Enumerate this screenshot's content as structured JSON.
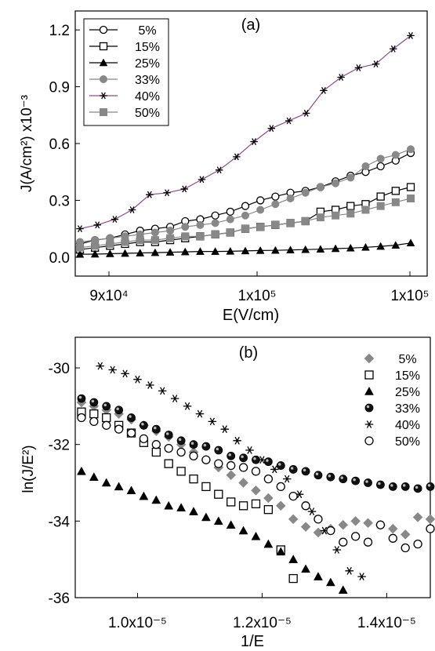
{
  "chart_data": [
    {
      "type": "line",
      "panel_label": "(a)",
      "xlabel": "E(V/cm)",
      "ylabel": "J(A/cm²) x10⁻³",
      "x_tick_labels": [
        "9x10⁴",
        "1x10⁵",
        "1x10⁵"
      ],
      "y_ticks": [
        0.0,
        0.3,
        0.6,
        0.9,
        1.2
      ],
      "y_tick_labels": [
        "0.0",
        "0.3",
        "0.6",
        "0.9",
        "1.2"
      ],
      "ylim": [
        -0.1,
        1.3
      ],
      "legend_position": "top-left",
      "x_point_index": [
        1,
        2,
        3,
        4,
        5,
        6,
        7,
        8,
        9,
        10,
        11,
        12,
        13,
        14,
        15,
        16,
        17,
        18,
        19,
        20,
        21,
        22,
        23
      ],
      "series": [
        {
          "name": "5%",
          "marker": "circle-open",
          "color": "#000000",
          "values": [
            0.07,
            0.09,
            0.1,
            0.12,
            0.14,
            0.15,
            0.16,
            0.19,
            0.2,
            0.22,
            0.24,
            0.27,
            0.3,
            0.32,
            0.34,
            0.35,
            0.37,
            0.4,
            0.43,
            0.45,
            0.48,
            0.51,
            0.55
          ]
        },
        {
          "name": "15%",
          "marker": "square-open",
          "color": "#000000",
          "values": [
            0.04,
            0.05,
            0.06,
            0.07,
            0.08,
            0.08,
            0.09,
            0.1,
            0.11,
            0.12,
            0.13,
            0.15,
            0.16,
            0.17,
            0.18,
            0.19,
            0.24,
            0.25,
            0.27,
            0.28,
            0.32,
            0.35,
            0.37
          ]
        },
        {
          "name": "25%",
          "marker": "triangle-filled",
          "color": "#000000",
          "values": [
            0.015,
            0.016,
            0.018,
            0.02,
            0.022,
            0.024,
            0.026,
            0.028,
            0.03,
            0.03,
            0.031,
            0.033,
            0.035,
            0.036,
            0.038,
            0.04,
            0.042,
            0.045,
            0.048,
            0.052,
            0.057,
            0.063,
            0.075
          ]
        },
        {
          "name": "33%",
          "marker": "circle-filled",
          "color": "#888888",
          "values": [
            0.08,
            0.09,
            0.1,
            0.11,
            0.12,
            0.13,
            0.14,
            0.16,
            0.17,
            0.18,
            0.2,
            0.22,
            0.25,
            0.28,
            0.31,
            0.34,
            0.37,
            0.39,
            0.42,
            0.48,
            0.52,
            0.54,
            0.57
          ]
        },
        {
          "name": "40%",
          "marker": "asterisk",
          "color": "#8a4a8a",
          "values": [
            0.15,
            0.17,
            0.2,
            0.25,
            0.33,
            0.34,
            0.36,
            0.41,
            0.46,
            0.53,
            0.61,
            0.68,
            0.72,
            0.76,
            0.88,
            0.95,
            1.0,
            1.02,
            1.1,
            1.17
          ]
        },
        {
          "name": "50%",
          "marker": "square-filled",
          "color": "#888888",
          "values": [
            0.05,
            0.06,
            0.07,
            0.08,
            0.09,
            0.09,
            0.1,
            0.11,
            0.11,
            0.12,
            0.13,
            0.15,
            0.16,
            0.17,
            0.18,
            0.19,
            0.21,
            0.22,
            0.23,
            0.25,
            0.27,
            0.29,
            0.31
          ]
        }
      ]
    },
    {
      "type": "scatter",
      "panel_label": "(b)",
      "xlabel": "1/E",
      "ylabel": "ln(J/E²)",
      "x_ticks": [
        1e-05,
        1.2e-05,
        1.4e-05
      ],
      "x_tick_labels": [
        "1.0x10⁻⁵",
        "1.2x10⁻⁵",
        "1.4x10⁻⁵"
      ],
      "xlim": [
        9e-06,
        1.47e-05
      ],
      "y_ticks": [
        -36,
        -34,
        -32,
        -30
      ],
      "y_tick_labels": [
        "-36",
        "-34",
        "-32",
        "-30"
      ],
      "ylim": [
        -36.0,
        -29.2
      ],
      "legend_position": "top-right",
      "series": [
        {
          "name": "5%",
          "marker": "diamond-filled",
          "color": "#888888",
          "points": [
            [
              9.1e-06,
              -30.9
            ],
            [
              9.3e-06,
              -31.0
            ],
            [
              9.5e-06,
              -31.1
            ],
            [
              9.7e-06,
              -31.2
            ],
            [
              9.9e-06,
              -31.35
            ],
            [
              1.01e-05,
              -31.5
            ],
            [
              1.03e-05,
              -31.65
            ],
            [
              1.05e-05,
              -31.8
            ],
            [
              1.07e-05,
              -32.0
            ],
            [
              1.09e-05,
              -32.2
            ],
            [
              1.11e-05,
              -32.4
            ],
            [
              1.13e-05,
              -32.6
            ],
            [
              1.15e-05,
              -32.8
            ],
            [
              1.17e-05,
              -33.0
            ],
            [
              1.19e-05,
              -33.2
            ],
            [
              1.21e-05,
              -33.4
            ],
            [
              1.23e-05,
              -33.6
            ],
            [
              1.25e-05,
              -33.95
            ],
            [
              1.27e-05,
              -34.15
            ],
            [
              1.29e-05,
              -34.3
            ],
            [
              1.31e-05,
              -34.2
            ],
            [
              1.33e-05,
              -34.1
            ],
            [
              1.35e-05,
              -34.0
            ],
            [
              1.37e-05,
              -34.05
            ],
            [
              1.39e-05,
              -34.1
            ],
            [
              1.41e-05,
              -34.2
            ],
            [
              1.43e-05,
              -34.35
            ],
            [
              1.45e-05,
              -33.9
            ],
            [
              1.47e-05,
              -33.95
            ]
          ]
        },
        {
          "name": "15%",
          "marker": "square-open",
          "color": "#000000",
          "points": [
            [
              9.1e-06,
              -31.15
            ],
            [
              9.3e-06,
              -31.2
            ],
            [
              9.5e-06,
              -31.3
            ],
            [
              9.7e-06,
              -31.5
            ],
            [
              9.9e-06,
              -31.7
            ],
            [
              1.01e-05,
              -31.95
            ],
            [
              1.03e-05,
              -32.2
            ],
            [
              1.05e-05,
              -32.5
            ],
            [
              1.07e-05,
              -32.7
            ],
            [
              1.09e-05,
              -32.9
            ],
            [
              1.11e-05,
              -33.1
            ],
            [
              1.13e-05,
              -33.3
            ],
            [
              1.15e-05,
              -33.5
            ],
            [
              1.17e-05,
              -33.6
            ],
            [
              1.19e-05,
              -33.55
            ],
            [
              1.21e-05,
              -33.7
            ],
            [
              1.23e-05,
              -34.75
            ],
            [
              1.25e-05,
              -35.5
            ]
          ]
        },
        {
          "name": "25%",
          "marker": "triangle-filled",
          "color": "#000000",
          "points": [
            [
              9.1e-06,
              -32.7
            ],
            [
              9.3e-06,
              -32.85
            ],
            [
              9.5e-06,
              -33.0
            ],
            [
              9.7e-06,
              -33.1
            ],
            [
              9.9e-06,
              -33.2
            ],
            [
              1.01e-05,
              -33.35
            ],
            [
              1.03e-05,
              -33.45
            ],
            [
              1.05e-05,
              -33.6
            ],
            [
              1.07e-05,
              -33.65
            ],
            [
              1.09e-05,
              -33.75
            ],
            [
              1.11e-05,
              -33.9
            ],
            [
              1.13e-05,
              -34.0
            ],
            [
              1.15e-05,
              -34.1
            ],
            [
              1.17e-05,
              -34.25
            ],
            [
              1.19e-05,
              -34.4
            ],
            [
              1.21e-05,
              -34.6
            ],
            [
              1.23e-05,
              -34.8
            ],
            [
              1.25e-05,
              -35.0
            ],
            [
              1.27e-05,
              -35.25
            ],
            [
              1.29e-05,
              -35.45
            ],
            [
              1.31e-05,
              -35.6
            ],
            [
              1.33e-05,
              -35.8
            ]
          ]
        },
        {
          "name": "33%",
          "marker": "sphere",
          "color": "#000000",
          "points": [
            [
              9.1e-06,
              -30.8
            ],
            [
              9.3e-06,
              -30.9
            ],
            [
              9.5e-06,
              -31.0
            ],
            [
              9.7e-06,
              -31.1
            ],
            [
              9.9e-06,
              -31.3
            ],
            [
              1.01e-05,
              -31.5
            ],
            [
              1.03e-05,
              -31.6
            ],
            [
              1.05e-05,
              -31.75
            ],
            [
              1.07e-05,
              -31.9
            ],
            [
              1.09e-05,
              -32.0
            ],
            [
              1.11e-05,
              -32.05
            ],
            [
              1.13e-05,
              -32.15
            ],
            [
              1.15e-05,
              -32.3
            ],
            [
              1.17e-05,
              -32.35
            ],
            [
              1.19e-05,
              -32.4
            ],
            [
              1.21e-05,
              -32.45
            ],
            [
              1.23e-05,
              -32.55
            ],
            [
              1.25e-05,
              -32.65
            ],
            [
              1.27e-05,
              -32.7
            ],
            [
              1.29e-05,
              -32.8
            ],
            [
              1.31e-05,
              -32.85
            ],
            [
              1.33e-05,
              -32.9
            ],
            [
              1.35e-05,
              -32.95
            ],
            [
              1.37e-05,
              -33.0
            ],
            [
              1.39e-05,
              -33.05
            ],
            [
              1.41e-05,
              -33.1
            ],
            [
              1.43e-05,
              -33.1
            ],
            [
              1.45e-05,
              -33.15
            ],
            [
              1.47e-05,
              -33.1
            ]
          ]
        },
        {
          "name": "40%",
          "marker": "asterisk",
          "color": "#000000",
          "points": [
            [
              9.4e-06,
              -29.95
            ],
            [
              9.6e-06,
              -30.05
            ],
            [
              9.8e-06,
              -30.15
            ],
            [
              1e-05,
              -30.3
            ],
            [
              1.02e-05,
              -30.45
            ],
            [
              1.04e-05,
              -30.6
            ],
            [
              1.06e-05,
              -30.8
            ],
            [
              1.08e-05,
              -31.0
            ],
            [
              1.1e-05,
              -31.2
            ],
            [
              1.12e-05,
              -31.4
            ],
            [
              1.14e-05,
              -31.6
            ],
            [
              1.16e-05,
              -31.9
            ],
            [
              1.18e-05,
              -32.15
            ],
            [
              1.2e-05,
              -32.4
            ],
            [
              1.22e-05,
              -32.65
            ],
            [
              1.24e-05,
              -32.9
            ],
            [
              1.26e-05,
              -33.3
            ],
            [
              1.28e-05,
              -33.75
            ],
            [
              1.3e-05,
              -34.25
            ],
            [
              1.32e-05,
              -34.75
            ],
            [
              1.34e-05,
              -35.3
            ],
            [
              1.36e-05,
              -35.45
            ]
          ]
        },
        {
          "name": "50%",
          "marker": "circle-open",
          "color": "#000000",
          "points": [
            [
              9.1e-06,
              -31.3
            ],
            [
              9.3e-06,
              -31.4
            ],
            [
              9.5e-06,
              -31.5
            ],
            [
              9.7e-06,
              -31.6
            ],
            [
              9.9e-06,
              -31.7
            ],
            [
              1.01e-05,
              -31.85
            ],
            [
              1.03e-05,
              -32.0
            ],
            [
              1.05e-05,
              -32.1
            ],
            [
              1.07e-05,
              -32.2
            ],
            [
              1.09e-05,
              -32.3
            ],
            [
              1.11e-05,
              -32.4
            ],
            [
              1.13e-05,
              -32.5
            ],
            [
              1.15e-05,
              -32.55
            ],
            [
              1.17e-05,
              -32.6
            ],
            [
              1.19e-05,
              -32.7
            ],
            [
              1.21e-05,
              -32.9
            ],
            [
              1.23e-05,
              -33.1
            ],
            [
              1.25e-05,
              -33.35
            ],
            [
              1.27e-05,
              -33.6
            ],
            [
              1.29e-05,
              -33.95
            ],
            [
              1.31e-05,
              -34.25
            ],
            [
              1.33e-05,
              -34.55
            ],
            [
              1.35e-05,
              -34.4
            ],
            [
              1.37e-05,
              -34.55
            ],
            [
              1.39e-05,
              -34.1
            ],
            [
              1.41e-05,
              -34.45
            ],
            [
              1.43e-05,
              -34.7
            ],
            [
              1.45e-05,
              -34.6
            ],
            [
              1.47e-05,
              -34.2
            ]
          ]
        }
      ]
    }
  ]
}
